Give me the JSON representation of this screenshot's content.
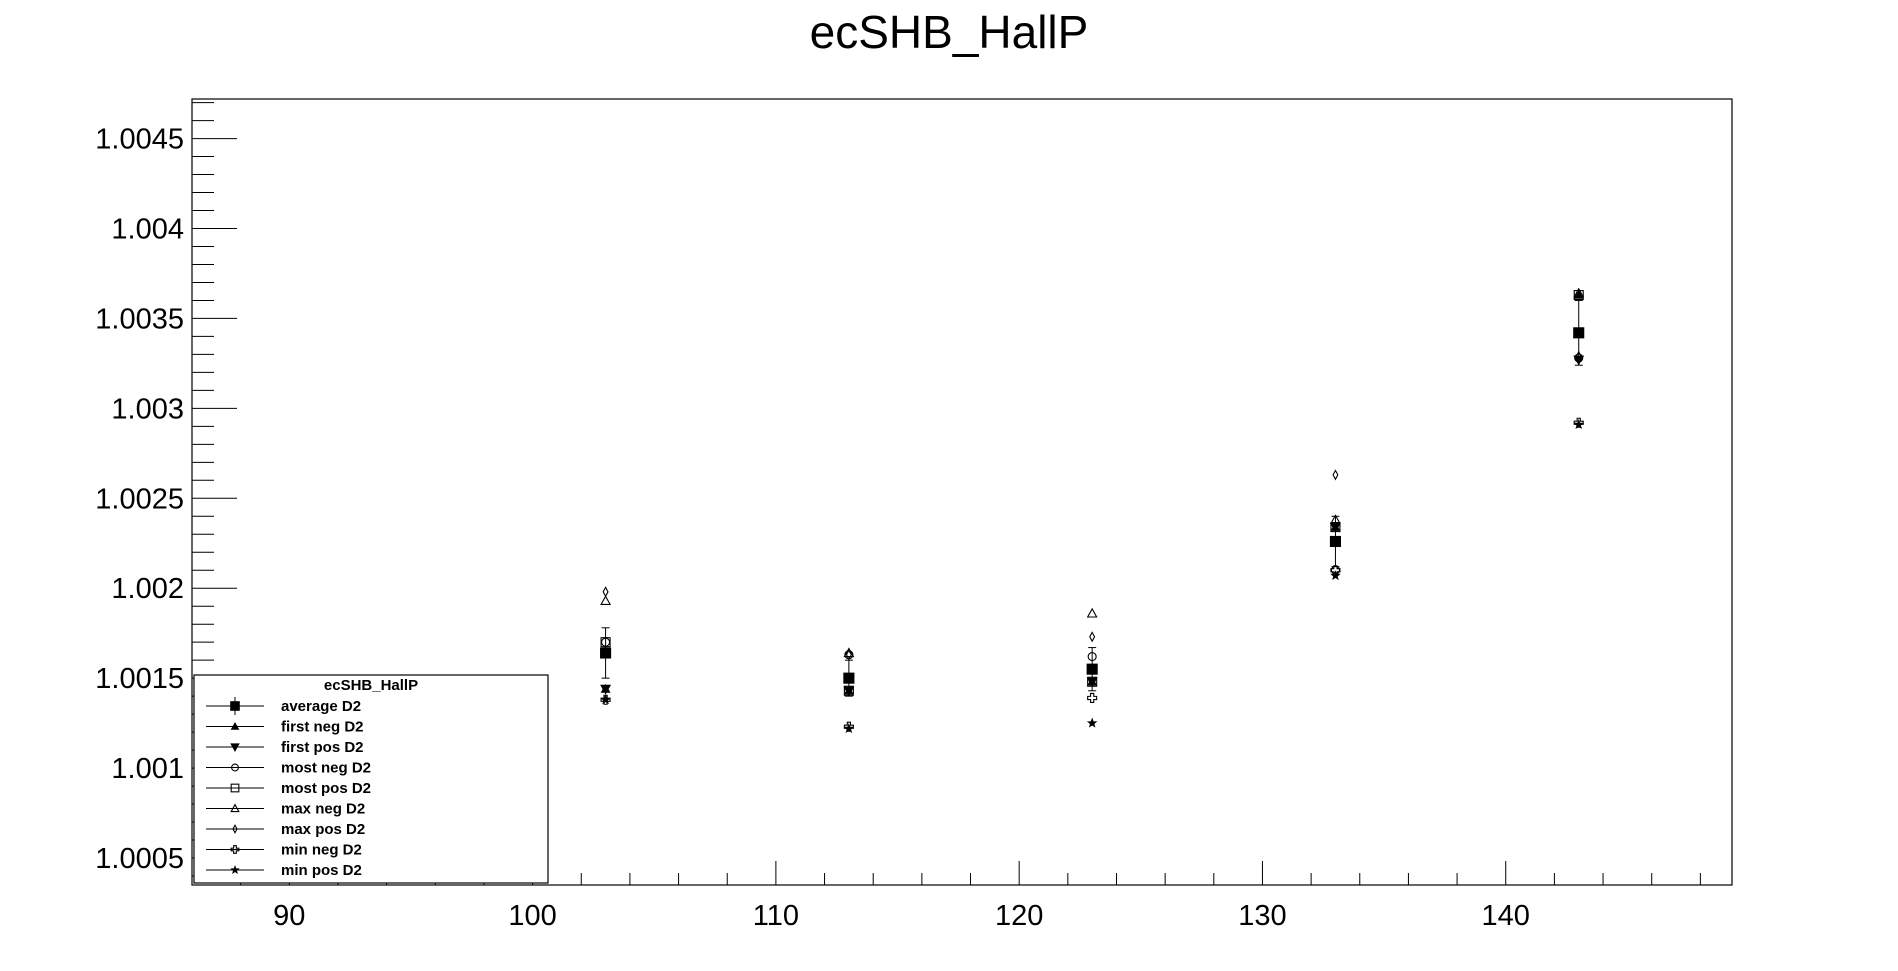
{
  "chart_data": {
    "type": "scatter",
    "title": "ecSHB_HallP",
    "xlabel": "",
    "ylabel": "",
    "xlim": [
      86,
      149.3
    ],
    "ylim": [
      1.00035,
      1.00472
    ],
    "x_ticks": [
      90,
      100,
      110,
      120,
      130,
      140
    ],
    "y_ticks": [
      1.0005,
      1.001,
      1.0015,
      1.002,
      1.0025,
      1.003,
      1.0035,
      1.004,
      1.0045
    ],
    "y_tick_labels": [
      "1.0005",
      "1.001",
      "1.0015",
      "1.002",
      "1.0025",
      "1.003",
      "1.0035",
      "1.004",
      "1.0045"
    ],
    "grid": false,
    "legend": {
      "title": "ecSHB_HallP",
      "position": "bottom-left"
    },
    "series": [
      {
        "name": "average D2",
        "marker": "square-filled",
        "x": [
          103,
          113,
          123,
          133,
          143
        ],
        "y": [
          1.00164,
          1.0015,
          1.00155,
          1.00226,
          1.00342
        ],
        "err": [
          0.00014,
          0.0001,
          0.00012,
          0.00014,
          0.00018
        ]
      },
      {
        "name": "first neg D2",
        "marker": "triangle-up-filled",
        "x": [
          103,
          113,
          123,
          133,
          143
        ],
        "y": [
          1.00144,
          1.00143,
          1.00148,
          1.00234,
          1.00363
        ],
        "err": []
      },
      {
        "name": "first pos D2",
        "marker": "triangle-down-filled",
        "x": [
          103,
          113,
          123,
          133,
          143
        ],
        "y": [
          1.00144,
          1.00143,
          1.00148,
          1.00234,
          1.00327
        ],
        "err": []
      },
      {
        "name": "most neg D2",
        "marker": "circle-open",
        "x": [
          103,
          113,
          123,
          133,
          143
        ],
        "y": [
          1.0017,
          1.00163,
          1.00162,
          1.0021,
          1.00328
        ],
        "err": []
      },
      {
        "name": "most pos D2",
        "marker": "square-open",
        "x": [
          103,
          113,
          123,
          133,
          143
        ],
        "y": [
          1.0017,
          1.00143,
          1.00148,
          1.00234,
          1.00363
        ],
        "err": []
      },
      {
        "name": "max neg D2",
        "marker": "triangle-up-open",
        "x": [
          103,
          113,
          123,
          133,
          143
        ],
        "y": [
          1.00193,
          1.00164,
          1.00186,
          1.00238,
          1.00364
        ],
        "err": []
      },
      {
        "name": "max pos D2",
        "marker": "diamond-open",
        "x": [
          103,
          113,
          123,
          133,
          143
        ],
        "y": [
          1.00198,
          1.00163,
          1.00173,
          1.00263,
          1.00329
        ],
        "err": []
      },
      {
        "name": "min neg D2",
        "marker": "cross-open",
        "x": [
          103,
          113,
          123,
          133,
          143
        ],
        "y": [
          1.00138,
          1.00123,
          1.00139,
          1.0021,
          1.00292
        ],
        "err": []
      },
      {
        "name": "min pos D2",
        "marker": "star",
        "x": [
          103,
          113,
          123,
          133,
          143
        ],
        "y": [
          1.00138,
          1.00122,
          1.00125,
          1.00207,
          1.00291
        ],
        "err": []
      }
    ]
  }
}
